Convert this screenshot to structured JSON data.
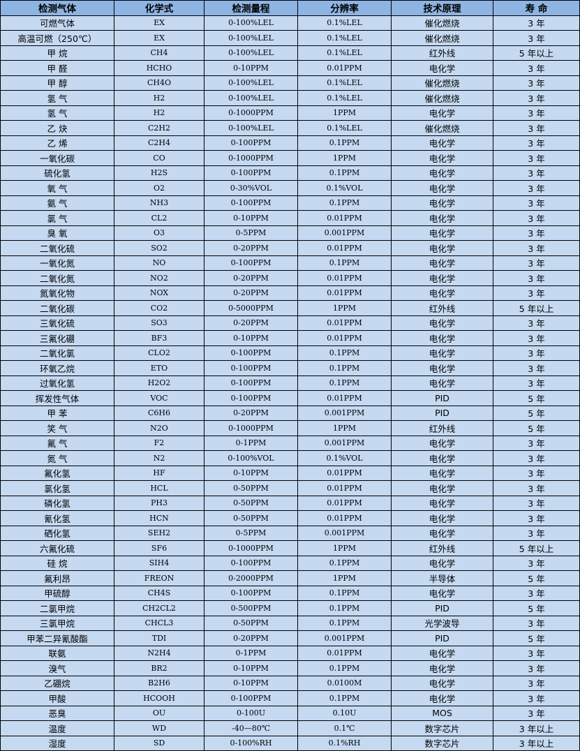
{
  "colors": {
    "header_bg": "#8db4e2",
    "row_bg": "#c5d9f1",
    "border": "#000000"
  },
  "headers": [
    "检测气体",
    "化学式",
    "检测量程",
    "分辨率",
    "技术原理",
    "寿 命"
  ],
  "rows": [
    [
      "可燃气体",
      "EX",
      "0-100%LEL",
      "0.1%LEL",
      "催化燃烧",
      "3 年"
    ],
    [
      "高温可燃（250℃）",
      "EX",
      "0-100%LEL",
      "0.1%LEL",
      "催化燃烧",
      "3 年"
    ],
    [
      "甲 烷",
      "CH4",
      "0-100%LEL",
      "0.1%LEL",
      "红外线",
      "5 年以上"
    ],
    [
      "甲 醛",
      "HCHO",
      "0-10PPM",
      "0.01PPM",
      "电化学",
      "3 年"
    ],
    [
      "甲 醇",
      "CH4O",
      "0-100%LEL",
      "0.1%LEL",
      "催化燃烧",
      "3 年"
    ],
    [
      "氢 气",
      "H2",
      "0-100%LEL",
      "0.1%LEL",
      "催化燃烧",
      "3 年"
    ],
    [
      "氢 气",
      "H2",
      "0-1000PPM",
      "1PPM",
      "电化学",
      "3 年"
    ],
    [
      "乙 炔",
      "C2H2",
      "0-100%LEL",
      "0.1%LEL",
      "催化燃烧",
      "3 年"
    ],
    [
      "乙 烯",
      "C2H4",
      "0-100PPM",
      "0.1PPM",
      "电化学",
      "3 年"
    ],
    [
      "一氧化碳",
      "CO",
      "0-1000PPM",
      "1PPM",
      "电化学",
      "3 年"
    ],
    [
      "硫化氢",
      "H2S",
      "0-100PPM",
      "0.1PPM",
      "电化学",
      "3 年"
    ],
    [
      "氧 气",
      "O2",
      "0-30%VOL",
      "0.1%VOL",
      "电化学",
      "3 年"
    ],
    [
      "氨 气",
      "NH3",
      "0-100PPM",
      "0.1PPM",
      "电化学",
      "3 年"
    ],
    [
      "氯 气",
      "CL2",
      "0-10PPM",
      "0.01PPM",
      "电化学",
      "3 年"
    ],
    [
      "臭 氧",
      "O3",
      "0-5PPM",
      "0.001PPM",
      "电化学",
      "3 年"
    ],
    [
      "二氧化硫",
      "SO2",
      "0-20PPM",
      "0.01PPM",
      "电化学",
      "3 年"
    ],
    [
      "一氧化氮",
      "NO",
      "0-100PPM",
      "0.1PPM",
      "电化学",
      "3 年"
    ],
    [
      "二氧化氮",
      "NO2",
      "0-20PPM",
      "0.01PPM",
      "电化学",
      "3 年"
    ],
    [
      "氮氧化物",
      "NOX",
      "0-20PPM",
      "0.01PPM",
      "电化学",
      "3 年"
    ],
    [
      "二氧化碳",
      "CO2",
      "0-5000PPM",
      "1PPM",
      "红外线",
      "5 年以上"
    ],
    [
      "三氧化硫",
      "SO3",
      "0-20PPM",
      "0.01PPM",
      "电化学",
      "3 年"
    ],
    [
      "三氟化硼",
      "BF3",
      "0-10PPM",
      "0.01PPM",
      "电化学",
      "3 年"
    ],
    [
      "二氧化氯",
      "CLO2",
      "0-100PPM",
      "0.1PPM",
      "电化学",
      "3 年"
    ],
    [
      "环氧乙烷",
      "ETO",
      "0-100PPM",
      "0.1PPM",
      "电化学",
      "3 年"
    ],
    [
      "过氧化氢",
      "H2O2",
      "0-100PPM",
      "0.1PPM",
      "电化学",
      "3 年"
    ],
    [
      "挥发性气体",
      "VOC",
      "0-100PPM",
      "0.01PPM",
      "PID",
      "5 年"
    ],
    [
      "甲 苯",
      "C6H6",
      "0-20PPM",
      "0.001PPM",
      "PID",
      "5 年"
    ],
    [
      "笑 气",
      "N2O",
      "0-1000PPM",
      "1PPM",
      "红外线",
      "5 年"
    ],
    [
      "氟 气",
      "F2",
      "0-1PPM",
      "0.001PPM",
      "电化学",
      "3 年"
    ],
    [
      "氮 气",
      "N2",
      "0-100%VOL",
      "0.1%VOL",
      "电化学",
      "3 年"
    ],
    [
      "氟化氢",
      "HF",
      "0-10PPM",
      "0.01PPM",
      "电化学",
      "3 年"
    ],
    [
      "氯化氢",
      "HCL",
      "0-50PPM",
      "0.01PPM",
      "电化学",
      "3 年"
    ],
    [
      "磷化氢",
      "PH3",
      "0-50PPM",
      "0.01PPM",
      "电化学",
      "3 年"
    ],
    [
      "氰化氢",
      "HCN",
      "0-50PPM",
      "0.01PPM",
      "电化学",
      "3 年"
    ],
    [
      "硒化氢",
      "SEH2",
      "0-5PPM",
      "0.001PPM",
      "电化学",
      "3 年"
    ],
    [
      "六氟化硫",
      "SF6",
      "0-1000PPM",
      "1PPM",
      "红外线",
      "5 年以上"
    ],
    [
      "硅 烷",
      "SIH4",
      "0-100PPM",
      "0.1PPM",
      "电化学",
      "3 年"
    ],
    [
      "氟利昂",
      "FREON",
      "0-2000PPM",
      "1PPM",
      "半导体",
      "5 年"
    ],
    [
      "甲硫醇",
      "CH4S",
      "0-100PPM",
      "0.1PPM",
      "电化学",
      "3 年"
    ],
    [
      "二氯甲烷",
      "CH2CL2",
      "0-500PPM",
      "0.1PPM",
      "PID",
      "5 年"
    ],
    [
      "三氯甲烷",
      "CHCL3",
      "0-50PPM",
      "0.1PPM",
      "光学波导",
      "3 年"
    ],
    [
      "甲苯二异氰酸酯",
      "TDI",
      "0-20PPM",
      "0.001PPM",
      "PID",
      "5 年"
    ],
    [
      "联氨",
      "N2H4",
      "0-1PPM",
      "0.01PPM",
      "电化学",
      "3 年"
    ],
    [
      "溴气",
      "BR2",
      "0-10PPM",
      "0.1PPM",
      "电化学",
      "3 年"
    ],
    [
      "乙硼烷",
      "B2H6",
      "0-10PPM",
      "0.0100M",
      "电化学",
      "3 年"
    ],
    [
      "甲酸",
      "HCOOH",
      "0-100PPM",
      "0.1PPM",
      "电化学",
      "3 年"
    ],
    [
      "恶臭",
      "OU",
      "0-100U",
      "0.10U",
      "MOS",
      "3 年"
    ],
    [
      "温度",
      "WD",
      "-40—80℃",
      "0.1℃",
      "数字芯片",
      "3 年以上"
    ],
    [
      "湿度",
      "SD",
      "0-100%RH",
      "0.1%RH",
      "数字芯片",
      "3 年以上"
    ]
  ]
}
